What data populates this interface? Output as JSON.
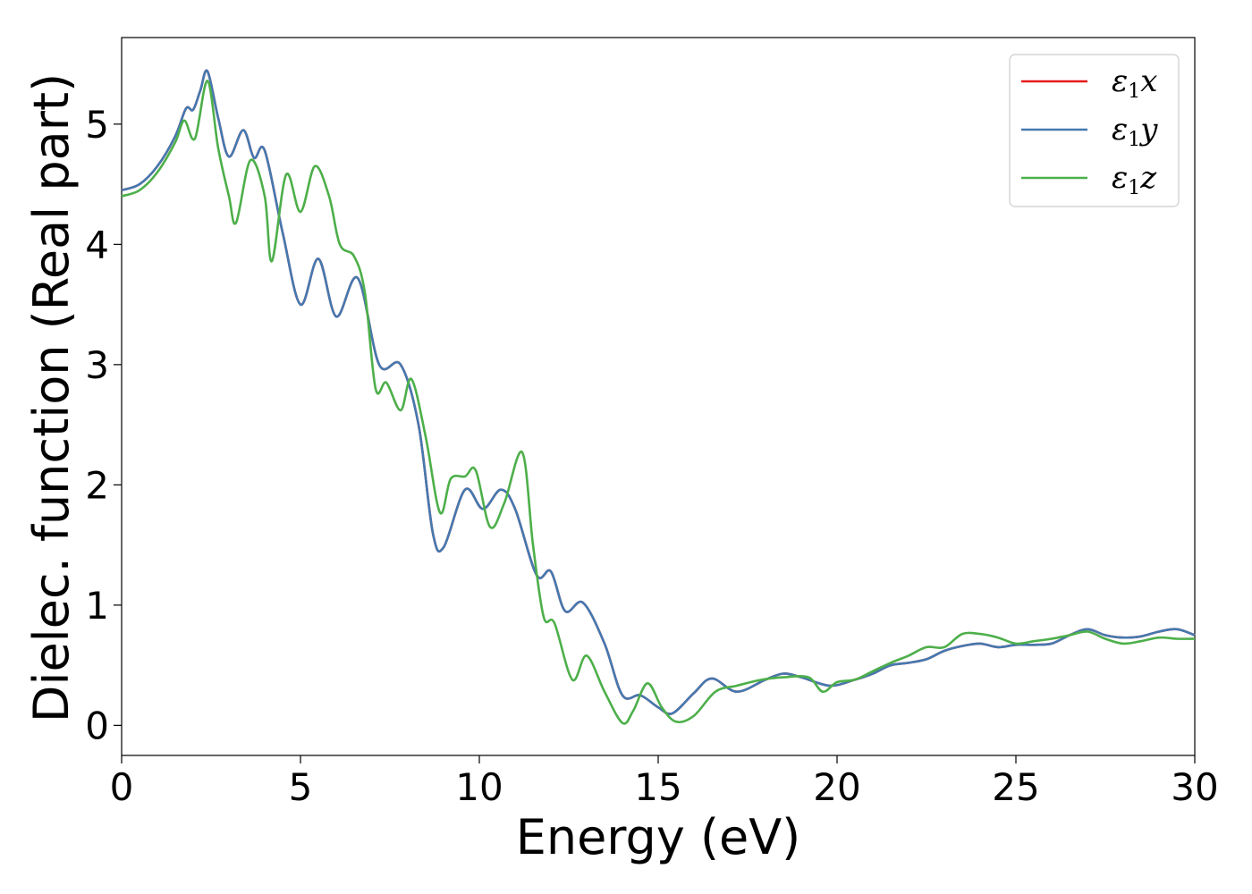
{
  "chart_data": {
    "type": "line",
    "title": "",
    "xlabel": "Energy (eV)",
    "ylabel": "Dielec. function (Real part)",
    "xlim": [
      0,
      30
    ],
    "ylim": [
      -0.25,
      5.72
    ],
    "xticks": [
      0,
      5,
      10,
      15,
      20,
      25,
      30
    ],
    "yticks": [
      0,
      1,
      2,
      3,
      4,
      5
    ],
    "grid": false,
    "legend_position": "top-right",
    "series": [
      {
        "name": "ε1x",
        "color": "#e41a1c",
        "x": [
          0,
          0.5,
          1.0,
          1.5,
          1.8,
          2.0,
          2.2,
          2.4,
          2.7,
          3.0,
          3.4,
          3.7,
          4.0,
          4.5,
          5.0,
          5.5,
          6.0,
          6.6,
          7.2,
          7.8,
          8.3,
          8.7,
          9.0,
          9.6,
          10.1,
          10.6,
          11.0,
          11.6,
          12.0,
          12.4,
          12.9,
          13.5,
          14.0,
          14.5,
          15.0,
          15.4,
          16.0,
          16.5,
          17.2,
          18.0,
          18.5,
          19.0,
          19.8,
          20.5,
          21.0,
          21.5,
          22.0,
          22.5,
          23.0,
          23.5,
          24.0,
          24.5,
          25.0,
          25.5,
          26.0,
          26.5,
          27.0,
          27.5,
          28.0,
          28.5,
          29.0,
          29.5,
          30.0
        ],
        "values": [
          4.45,
          4.5,
          4.65,
          4.9,
          5.13,
          5.12,
          5.28,
          5.44,
          5.05,
          4.73,
          4.95,
          4.72,
          4.78,
          4.1,
          3.5,
          3.88,
          3.4,
          3.72,
          3.0,
          3.0,
          2.5,
          1.6,
          1.48,
          1.96,
          1.8,
          1.96,
          1.8,
          1.25,
          1.28,
          0.95,
          1.02,
          0.68,
          0.25,
          0.25,
          0.15,
          0.1,
          0.27,
          0.39,
          0.28,
          0.38,
          0.43,
          0.4,
          0.33,
          0.38,
          0.43,
          0.5,
          0.52,
          0.55,
          0.62,
          0.66,
          0.68,
          0.65,
          0.67,
          0.67,
          0.68,
          0.75,
          0.8,
          0.75,
          0.73,
          0.74,
          0.78,
          0.8,
          0.75
        ]
      },
      {
        "name": "ε1y",
        "color": "#4479b0",
        "x": [
          0,
          0.5,
          1.0,
          1.5,
          1.8,
          2.0,
          2.2,
          2.4,
          2.7,
          3.0,
          3.4,
          3.7,
          4.0,
          4.5,
          5.0,
          5.5,
          6.0,
          6.6,
          7.2,
          7.8,
          8.3,
          8.7,
          9.0,
          9.6,
          10.1,
          10.6,
          11.0,
          11.6,
          12.0,
          12.4,
          12.9,
          13.5,
          14.0,
          14.5,
          15.0,
          15.4,
          16.0,
          16.5,
          17.2,
          18.0,
          18.5,
          19.0,
          19.8,
          20.5,
          21.0,
          21.5,
          22.0,
          22.5,
          23.0,
          23.5,
          24.0,
          24.5,
          25.0,
          25.5,
          26.0,
          26.5,
          27.0,
          27.5,
          28.0,
          28.5,
          29.0,
          29.5,
          30.0
        ],
        "values": [
          4.45,
          4.5,
          4.65,
          4.9,
          5.13,
          5.12,
          5.28,
          5.44,
          5.05,
          4.73,
          4.95,
          4.72,
          4.78,
          4.1,
          3.5,
          3.88,
          3.4,
          3.72,
          3.0,
          3.0,
          2.5,
          1.6,
          1.48,
          1.96,
          1.8,
          1.96,
          1.8,
          1.25,
          1.28,
          0.95,
          1.02,
          0.68,
          0.25,
          0.25,
          0.15,
          0.1,
          0.27,
          0.39,
          0.28,
          0.38,
          0.43,
          0.4,
          0.33,
          0.38,
          0.43,
          0.5,
          0.52,
          0.55,
          0.62,
          0.66,
          0.68,
          0.65,
          0.67,
          0.67,
          0.68,
          0.75,
          0.8,
          0.75,
          0.73,
          0.74,
          0.78,
          0.8,
          0.75
        ]
      },
      {
        "name": "ε1z",
        "color": "#4daf4a",
        "x": [
          0,
          0.5,
          1.0,
          1.5,
          1.75,
          2.05,
          2.4,
          2.7,
          3.0,
          3.2,
          3.6,
          4.0,
          4.2,
          4.6,
          5.0,
          5.4,
          5.8,
          6.1,
          6.5,
          6.8,
          7.1,
          7.4,
          7.8,
          8.1,
          8.5,
          8.9,
          9.2,
          9.6,
          9.9,
          10.3,
          10.7,
          11.2,
          11.5,
          11.8,
          12.1,
          12.6,
          13.0,
          13.5,
          14.0,
          14.3,
          14.7,
          15.1,
          15.5,
          16.0,
          16.6,
          17.2,
          17.9,
          18.5,
          19.2,
          19.6,
          20.0,
          20.5,
          21.0,
          21.5,
          22.0,
          22.5,
          23.0,
          23.5,
          24.0,
          24.5,
          25.0,
          25.5,
          26.0,
          26.5,
          27.0,
          27.5,
          28.0,
          28.5,
          29.0,
          29.5,
          30.0
        ],
        "values": [
          4.4,
          4.45,
          4.6,
          4.85,
          5.03,
          4.88,
          5.36,
          4.8,
          4.4,
          4.18,
          4.7,
          4.4,
          3.86,
          4.58,
          4.27,
          4.65,
          4.4,
          4.0,
          3.9,
          3.6,
          2.8,
          2.85,
          2.62,
          2.88,
          2.4,
          1.77,
          2.05,
          2.07,
          2.12,
          1.65,
          1.85,
          2.27,
          1.5,
          0.9,
          0.85,
          0.38,
          0.58,
          0.28,
          0.02,
          0.12,
          0.35,
          0.15,
          0.03,
          0.08,
          0.28,
          0.33,
          0.38,
          0.4,
          0.4,
          0.28,
          0.36,
          0.38,
          0.45,
          0.52,
          0.58,
          0.65,
          0.65,
          0.76,
          0.76,
          0.73,
          0.68,
          0.7,
          0.72,
          0.75,
          0.78,
          0.72,
          0.68,
          0.7,
          0.73,
          0.72,
          0.72
        ]
      }
    ]
  }
}
